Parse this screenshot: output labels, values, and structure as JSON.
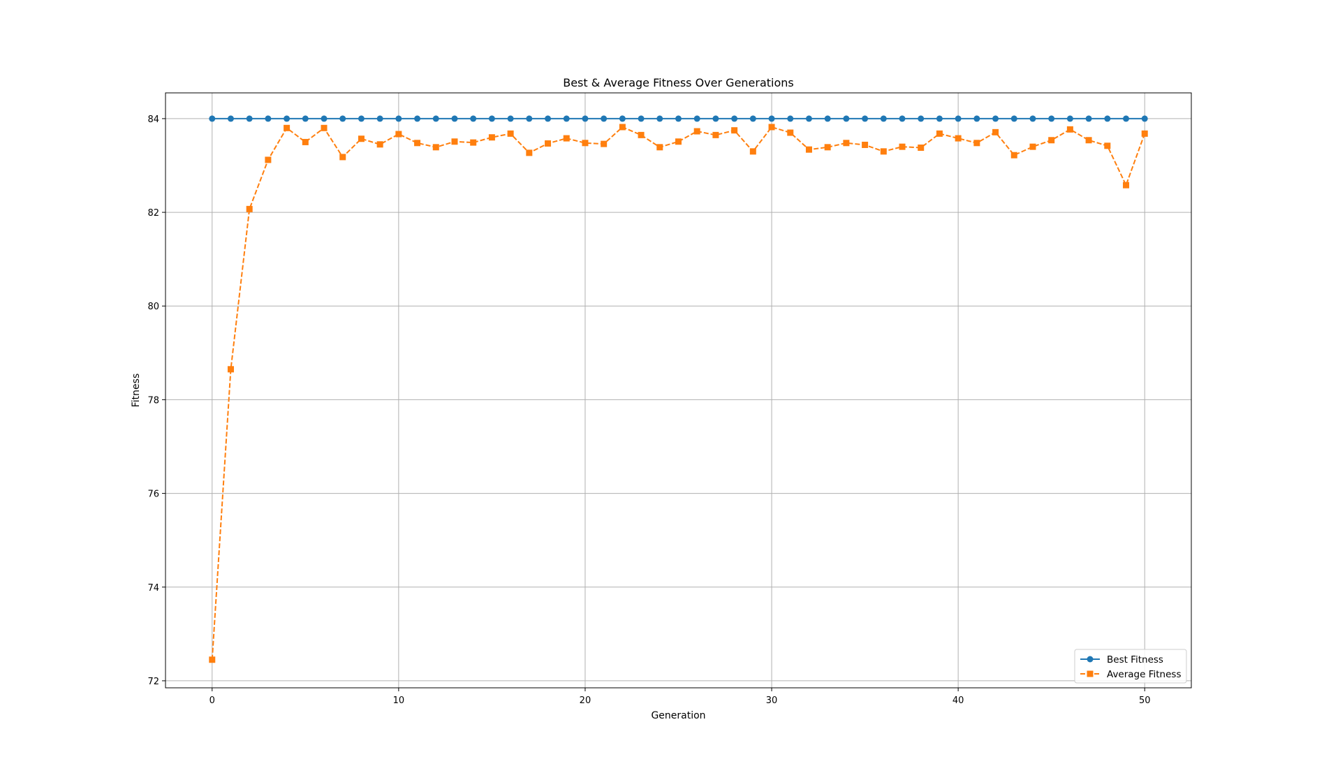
{
  "chart_data": {
    "type": "line",
    "title": "Best & Average Fitness Over Generations",
    "xlabel": "Generation",
    "ylabel": "Fitness",
    "xlim": [
      -2.5,
      52.5
    ],
    "ylim": [
      71.85,
      84.55
    ],
    "xticks": [
      0,
      10,
      20,
      30,
      40,
      50
    ],
    "yticks": [
      72,
      74,
      76,
      78,
      80,
      82,
      84
    ],
    "grid": true,
    "legend_position": "lower-right",
    "x": [
      0,
      1,
      2,
      3,
      4,
      5,
      6,
      7,
      8,
      9,
      10,
      11,
      12,
      13,
      14,
      15,
      16,
      17,
      18,
      19,
      20,
      21,
      22,
      23,
      24,
      25,
      26,
      27,
      28,
      29,
      30,
      31,
      32,
      33,
      34,
      35,
      36,
      37,
      38,
      39,
      40,
      41,
      42,
      43,
      44,
      45,
      46,
      47,
      48,
      49,
      50
    ],
    "series": [
      {
        "name": "Best Fitness",
        "color": "#1f77b4",
        "marker": "circle",
        "linestyle": "solid",
        "values": [
          84,
          84,
          84,
          84,
          84,
          84,
          84,
          84,
          84,
          84,
          84,
          84,
          84,
          84,
          84,
          84,
          84,
          84,
          84,
          84,
          84,
          84,
          84,
          84,
          84,
          84,
          84,
          84,
          84,
          84,
          84,
          84,
          84,
          84,
          84,
          84,
          84,
          84,
          84,
          84,
          84,
          84,
          84,
          84,
          84,
          84,
          84,
          84,
          84,
          84,
          84
        ]
      },
      {
        "name": "Average Fitness",
        "color": "#ff7f0e",
        "marker": "square",
        "linestyle": "dashed",
        "values": [
          72.45,
          78.65,
          82.07,
          83.12,
          83.8,
          83.5,
          83.8,
          83.18,
          83.57,
          83.45,
          83.67,
          83.48,
          83.39,
          83.51,
          83.49,
          83.6,
          83.68,
          83.27,
          83.47,
          83.58,
          83.48,
          83.46,
          83.82,
          83.65,
          83.39,
          83.51,
          83.73,
          83.65,
          83.75,
          83.3,
          83.82,
          83.7,
          83.34,
          83.39,
          83.48,
          83.44,
          83.3,
          83.4,
          83.38,
          83.68,
          83.58,
          83.48,
          83.71,
          83.22,
          83.4,
          83.54,
          83.77,
          83.54,
          83.42,
          82.58,
          83.68
        ]
      }
    ]
  }
}
